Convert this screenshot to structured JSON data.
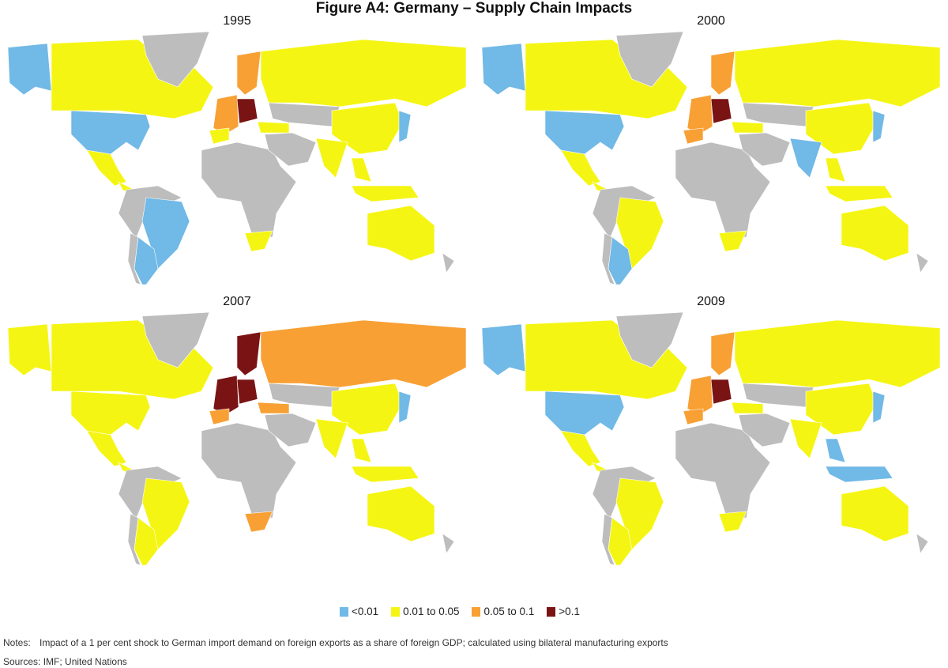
{
  "title": "Figure A4: Germany – Supply Chain Impacts",
  "colors": {
    "<0.01": "#71b9e6",
    "0.01 to 0.05": "#f5f514",
    "0.05 to 0.1": "#f8a034",
    ">0.1": "#7a1414",
    "none": "#bdbdbd"
  },
  "legend": [
    {
      "label": "<0.01",
      "key": "<0.01"
    },
    {
      "label": "0.01 to 0.05",
      "key": "0.01 to 0.05"
    },
    {
      "label": "0.05 to 0.1",
      "key": "0.05 to 0.1"
    },
    {
      "label": ">0.1",
      "key": ">0.1"
    }
  ],
  "notes": {
    "notes_label": "Notes:",
    "notes_text": "Impact of a 1 per cent shock to German import demand on foreign exports as a share of foreign GDP; calculated using bilateral manufacturing exports",
    "sources_label": "Sources:",
    "sources_text": "IMF; United Nations"
  },
  "chart_data": [
    {
      "type": "choropleth",
      "title": "1995",
      "regions": {
        "alaska": "<0.01",
        "canada": "0.01 to 0.05",
        "greenland": "none",
        "usa": "<0.01",
        "mexico": "0.01 to 0.05",
        "centralam": "0.01 to 0.05",
        "southnorth": "none",
        "brazil": "<0.01",
        "argentina": "<0.01",
        "chile": "none",
        "africa": "none",
        "southafrica": "0.01 to 0.05",
        "weurope": "0.05 to 0.1",
        "iberia": "0.01 to 0.05",
        "ceurope": ">0.1",
        "scandinavia": "0.05 to 0.1",
        "russia": "0.01 to 0.05",
        "centralasia": "none",
        "turkey": "0.01 to 0.05",
        "middleeast": "none",
        "china": "0.01 to 0.05",
        "india": "0.01 to 0.05",
        "japan": "<0.01",
        "seasia": "0.01 to 0.05",
        "indonesia": "0.01 to 0.05",
        "australia": "0.01 to 0.05",
        "nz": "none"
      }
    },
    {
      "type": "choropleth",
      "title": "2000",
      "regions": {
        "alaska": "<0.01",
        "canada": "0.01 to 0.05",
        "greenland": "none",
        "usa": "<0.01",
        "mexico": "0.01 to 0.05",
        "centralam": "0.01 to 0.05",
        "southnorth": "none",
        "brazil": "0.01 to 0.05",
        "argentina": "<0.01",
        "chile": "none",
        "africa": "none",
        "southafrica": "0.01 to 0.05",
        "weurope": "0.05 to 0.1",
        "iberia": "0.05 to 0.1",
        "ceurope": ">0.1",
        "scandinavia": "0.05 to 0.1",
        "russia": "0.01 to 0.05",
        "centralasia": "none",
        "turkey": "0.01 to 0.05",
        "middleeast": "none",
        "china": "0.01 to 0.05",
        "india": "<0.01",
        "japan": "<0.01",
        "seasia": "0.01 to 0.05",
        "indonesia": "0.01 to 0.05",
        "australia": "0.01 to 0.05",
        "nz": "none"
      }
    },
    {
      "type": "choropleth",
      "title": "2007",
      "regions": {
        "alaska": "0.01 to 0.05",
        "canada": "0.01 to 0.05",
        "greenland": "none",
        "usa": "0.01 to 0.05",
        "mexico": "0.01 to 0.05",
        "centralam": "0.01 to 0.05",
        "southnorth": "none",
        "brazil": "0.01 to 0.05",
        "argentina": "0.01 to 0.05",
        "chile": "none",
        "africa": "none",
        "southafrica": "0.05 to 0.1",
        "weurope": ">0.1",
        "iberia": "0.05 to 0.1",
        "ceurope": ">0.1",
        "scandinavia": ">0.1",
        "russia": "0.05 to 0.1",
        "centralasia": "none",
        "turkey": "0.05 to 0.1",
        "middleeast": "none",
        "china": "0.01 to 0.05",
        "india": "0.01 to 0.05",
        "japan": "<0.01",
        "seasia": "0.01 to 0.05",
        "indonesia": "0.01 to 0.05",
        "australia": "0.01 to 0.05",
        "nz": "none"
      }
    },
    {
      "type": "choropleth",
      "title": "2009",
      "regions": {
        "alaska": "<0.01",
        "canada": "0.01 to 0.05",
        "greenland": "none",
        "usa": "<0.01",
        "mexico": "0.01 to 0.05",
        "centralam": "0.01 to 0.05",
        "southnorth": "none",
        "brazil": "0.01 to 0.05",
        "argentina": "0.01 to 0.05",
        "chile": "none",
        "africa": "none",
        "southafrica": "0.01 to 0.05",
        "weurope": "0.05 to 0.1",
        "iberia": "0.05 to 0.1",
        "ceurope": ">0.1",
        "scandinavia": "0.05 to 0.1",
        "russia": "0.01 to 0.05",
        "centralasia": "none",
        "turkey": "0.01 to 0.05",
        "middleeast": "none",
        "china": "0.01 to 0.05",
        "india": "0.01 to 0.05",
        "japan": "<0.01",
        "seasia": "<0.01",
        "indonesia": "<0.01",
        "australia": "0.01 to 0.05",
        "nz": "none"
      }
    }
  ]
}
